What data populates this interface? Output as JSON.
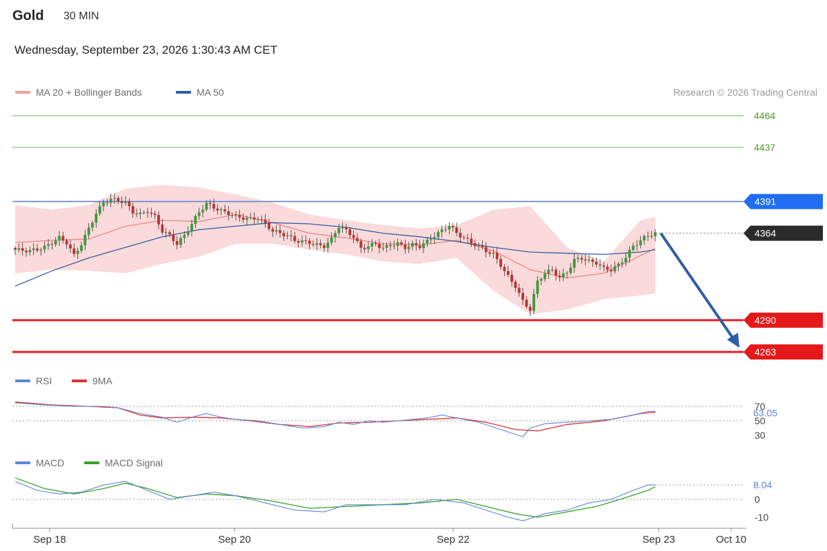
{
  "header": {
    "instrument": "Gold",
    "interval": "30 MIN",
    "datetime": "Wednesday, September 23, 2026 1:30:43 AM CET",
    "credit": "Research © 2026 Trading Central"
  },
  "legends": {
    "price": [
      {
        "label": "MA 20 + Bollinger Bands",
        "color": "#f4a0a0"
      },
      {
        "label": "MA 50",
        "color": "#2f5ea8"
      }
    ],
    "rsi": [
      {
        "label": "RSI",
        "color": "#5b86d6"
      },
      {
        "label": "9MA",
        "color": "#e03030"
      }
    ],
    "macd": [
      {
        "label": "MACD",
        "color": "#5b86d6"
      },
      {
        "label": "MACD Signal",
        "color": "#3aa02a"
      }
    ]
  },
  "colors": {
    "up": "#3a9a3a",
    "down": "#c03030",
    "band": "#f9d4d4",
    "ma20": "#f08080",
    "ma50": "#2f5ea8",
    "resistance": "#8fd08f",
    "pivot": "#5b86d6",
    "support": "#e02020",
    "arrow": "#2f5ea8"
  },
  "chart_data": [
    {
      "type": "candlestick",
      "title": "Gold 30 MIN",
      "x_ticks": [
        "Sep 18",
        "Sep 20",
        "Sep 22",
        "Sep 23",
        "Oct 10"
      ],
      "ylim": [
        4240,
        4480
      ],
      "levels": [
        {
          "label": "4464",
          "value": 4464,
          "kind": "resistance"
        },
        {
          "label": "4437",
          "value": 4437,
          "kind": "resistance"
        },
        {
          "label": "4391",
          "value": 4391,
          "kind": "pivot"
        },
        {
          "label": "4290",
          "value": 4290,
          "kind": "support"
        },
        {
          "label": "4263",
          "value": 4263,
          "kind": "support"
        }
      ],
      "last_price": {
        "label": "4364",
        "value": 4364
      },
      "forecast_target": 4263,
      "close_path": [
        [
          0,
          4350
        ],
        [
          4,
          4349
        ],
        [
          8,
          4352
        ],
        [
          12,
          4360
        ],
        [
          14,
          4356
        ],
        [
          16,
          4345
        ],
        [
          18,
          4355
        ],
        [
          20,
          4368
        ],
        [
          22,
          4381
        ],
        [
          24,
          4390
        ],
        [
          26,
          4393
        ],
        [
          28,
          4392
        ],
        [
          30,
          4390
        ],
        [
          32,
          4382
        ],
        [
          34,
          4380
        ],
        [
          36,
          4383
        ],
        [
          38,
          4378
        ],
        [
          40,
          4366
        ],
        [
          42,
          4362
        ],
        [
          44,
          4355
        ],
        [
          46,
          4362
        ],
        [
          48,
          4372
        ],
        [
          50,
          4382
        ],
        [
          52,
          4389
        ],
        [
          54,
          4386
        ],
        [
          56,
          4383
        ],
        [
          58,
          4381
        ],
        [
          60,
          4378
        ],
        [
          62,
          4377
        ],
        [
          64,
          4376
        ],
        [
          66,
          4377
        ],
        [
          68,
          4372
        ],
        [
          70,
          4366
        ],
        [
          72,
          4364
        ],
        [
          74,
          4362
        ],
        [
          76,
          4358
        ],
        [
          78,
          4357
        ],
        [
          80,
          4356
        ],
        [
          82,
          4354
        ],
        [
          84,
          4353
        ],
        [
          86,
          4359
        ],
        [
          88,
          4370
        ],
        [
          90,
          4366
        ],
        [
          92,
          4361
        ],
        [
          94,
          4351
        ],
        [
          96,
          4353
        ],
        [
          98,
          4355
        ],
        [
          100,
          4351
        ],
        [
          102,
          4354
        ],
        [
          104,
          4355
        ],
        [
          106,
          4352
        ],
        [
          108,
          4354
        ],
        [
          110,
          4353
        ],
        [
          112,
          4357
        ],
        [
          114,
          4362
        ],
        [
          116,
          4366
        ],
        [
          118,
          4371
        ],
        [
          120,
          4364
        ],
        [
          122,
          4360
        ],
        [
          124,
          4356
        ],
        [
          126,
          4353
        ],
        [
          128,
          4349
        ],
        [
          130,
          4346
        ],
        [
          132,
          4337
        ],
        [
          134,
          4327
        ],
        [
          136,
          4319
        ],
        [
          138,
          4306
        ],
        [
          140,
          4299
        ],
        [
          142,
          4323
        ],
        [
          144,
          4330
        ],
        [
          146,
          4333
        ],
        [
          148,
          4326
        ],
        [
          150,
          4331
        ],
        [
          152,
          4341
        ],
        [
          154,
          4343
        ],
        [
          156,
          4340
        ],
        [
          158,
          4339
        ],
        [
          160,
          4334
        ],
        [
          162,
          4333
        ],
        [
          164,
          4337
        ],
        [
          166,
          4344
        ],
        [
          168,
          4353
        ],
        [
          170,
          4358
        ],
        [
          172,
          4362
        ],
        [
          174,
          4364
        ]
      ],
      "ma20_path": [
        [
          0,
          4356
        ],
        [
          10,
          4358
        ],
        [
          20,
          4359
        ],
        [
          30,
          4370
        ],
        [
          40,
          4375
        ],
        [
          50,
          4374
        ],
        [
          60,
          4380
        ],
        [
          70,
          4373
        ],
        [
          80,
          4364
        ],
        [
          90,
          4360
        ],
        [
          100,
          4355
        ],
        [
          110,
          4354
        ],
        [
          120,
          4358
        ],
        [
          130,
          4349
        ],
        [
          140,
          4333
        ],
        [
          150,
          4326
        ],
        [
          160,
          4330
        ],
        [
          170,
          4345
        ],
        [
          174,
          4351
        ]
      ],
      "bollinger_upper": [
        [
          0,
          4388
        ],
        [
          10,
          4384
        ],
        [
          20,
          4388
        ],
        [
          30,
          4402
        ],
        [
          40,
          4405
        ],
        [
          50,
          4403
        ],
        [
          60,
          4397
        ],
        [
          70,
          4390
        ],
        [
          80,
          4380
        ],
        [
          90,
          4375
        ],
        [
          100,
          4371
        ],
        [
          110,
          4368
        ],
        [
          120,
          4371
        ],
        [
          130,
          4384
        ],
        [
          140,
          4387
        ],
        [
          150,
          4352
        ],
        [
          160,
          4340
        ],
        [
          170,
          4375
        ],
        [
          174,
          4378
        ]
      ],
      "bollinger_lower": [
        [
          0,
          4330
        ],
        [
          10,
          4333
        ],
        [
          20,
          4332
        ],
        [
          30,
          4330
        ],
        [
          40,
          4338
        ],
        [
          50,
          4344
        ],
        [
          60,
          4355
        ],
        [
          70,
          4355
        ],
        [
          80,
          4350
        ],
        [
          90,
          4346
        ],
        [
          100,
          4340
        ],
        [
          110,
          4338
        ],
        [
          120,
          4343
        ],
        [
          130,
          4315
        ],
        [
          140,
          4295
        ],
        [
          150,
          4299
        ],
        [
          160,
          4308
        ],
        [
          170,
          4311
        ],
        [
          174,
          4313
        ]
      ],
      "ma50_path": [
        [
          0,
          4319
        ],
        [
          10,
          4332
        ],
        [
          20,
          4343
        ],
        [
          30,
          4352
        ],
        [
          40,
          4361
        ],
        [
          50,
          4367
        ],
        [
          60,
          4370
        ],
        [
          70,
          4373
        ],
        [
          80,
          4372
        ],
        [
          90,
          4369
        ],
        [
          100,
          4364
        ],
        [
          110,
          4361
        ],
        [
          120,
          4357
        ],
        [
          130,
          4352
        ],
        [
          140,
          4348
        ],
        [
          150,
          4347
        ],
        [
          160,
          4346
        ],
        [
          170,
          4348
        ],
        [
          174,
          4350
        ]
      ]
    },
    {
      "type": "line",
      "title": "RSI",
      "levels": [
        {
          "label": "70",
          "value": 70
        },
        {
          "label": "50",
          "value": 50
        },
        {
          "label": "30",
          "value": 30
        }
      ],
      "last_value": {
        "label": "63.05",
        "value": 63.05
      },
      "ylim": [
        20,
        80
      ],
      "series": [
        {
          "name": "RSI",
          "values": [
            [
              0,
              75
            ],
            [
              8,
              72
            ],
            [
              16,
              70
            ],
            [
              24,
              70
            ],
            [
              28,
              68
            ],
            [
              34,
              60
            ],
            [
              40,
              55
            ],
            [
              44,
              48
            ],
            [
              48,
              55
            ],
            [
              52,
              60
            ],
            [
              56,
              55
            ],
            [
              60,
              52
            ],
            [
              66,
              50
            ],
            [
              72,
              45
            ],
            [
              78,
              40
            ],
            [
              84,
              42
            ],
            [
              88,
              48
            ],
            [
              92,
              45
            ],
            [
              96,
              50
            ],
            [
              100,
              48
            ],
            [
              104,
              50
            ],
            [
              108,
              52
            ],
            [
              112,
              54
            ],
            [
              116,
              58
            ],
            [
              120,
              54
            ],
            [
              126,
              48
            ],
            [
              132,
              38
            ],
            [
              138,
              28
            ],
            [
              140,
              40
            ],
            [
              144,
              46
            ],
            [
              150,
              48
            ],
            [
              156,
              50
            ],
            [
              162,
              52
            ],
            [
              168,
              58
            ],
            [
              172,
              63
            ],
            [
              174,
              63.05
            ]
          ]
        },
        {
          "name": "9MA",
          "values": [
            [
              0,
              76
            ],
            [
              10,
              72
            ],
            [
              20,
              70
            ],
            [
              28,
              68
            ],
            [
              34,
              58
            ],
            [
              40,
              54
            ],
            [
              48,
              55
            ],
            [
              56,
              54
            ],
            [
              64,
              50
            ],
            [
              72,
              45
            ],
            [
              80,
              42
            ],
            [
              88,
              47
            ],
            [
              96,
              48
            ],
            [
              104,
              50
            ],
            [
              112,
              52
            ],
            [
              120,
              54
            ],
            [
              128,
              48
            ],
            [
              136,
              38
            ],
            [
              142,
              36
            ],
            [
              150,
              45
            ],
            [
              160,
              50
            ],
            [
              170,
              60
            ],
            [
              174,
              62
            ]
          ]
        }
      ]
    },
    {
      "type": "line",
      "title": "MACD",
      "levels": [
        {
          "label": "0",
          "value": 0
        },
        {
          "label": "-10",
          "value": -10
        }
      ],
      "last_value": {
        "label": "8.04",
        "value": 8.04
      },
      "ylim": [
        -14,
        14
      ],
      "series": [
        {
          "name": "MACD",
          "values": [
            [
              0,
              10
            ],
            [
              6,
              5
            ],
            [
              12,
              3
            ],
            [
              18,
              4
            ],
            [
              24,
              8
            ],
            [
              30,
              10
            ],
            [
              36,
              5
            ],
            [
              42,
              0
            ],
            [
              48,
              2
            ],
            [
              54,
              4
            ],
            [
              60,
              2
            ],
            [
              68,
              -2
            ],
            [
              76,
              -6
            ],
            [
              84,
              -7
            ],
            [
              90,
              -3
            ],
            [
              98,
              -3
            ],
            [
              106,
              -3
            ],
            [
              114,
              0
            ],
            [
              122,
              -2
            ],
            [
              128,
              -6
            ],
            [
              134,
              -10
            ],
            [
              138,
              -12
            ],
            [
              144,
              -8
            ],
            [
              150,
              -6
            ],
            [
              156,
              -2
            ],
            [
              162,
              0
            ],
            [
              168,
              5
            ],
            [
              172,
              8
            ],
            [
              174,
              8.04
            ]
          ]
        },
        {
          "name": "MACD Signal",
          "values": [
            [
              0,
              12
            ],
            [
              8,
              6
            ],
            [
              16,
              3
            ],
            [
              24,
              6
            ],
            [
              30,
              9
            ],
            [
              36,
              6
            ],
            [
              44,
              1
            ],
            [
              52,
              3
            ],
            [
              60,
              2
            ],
            [
              70,
              -1
            ],
            [
              80,
              -5
            ],
            [
              90,
              -4
            ],
            [
              100,
              -3
            ],
            [
              110,
              -2
            ],
            [
              120,
              0
            ],
            [
              128,
              -4
            ],
            [
              136,
              -8
            ],
            [
              142,
              -10
            ],
            [
              150,
              -7
            ],
            [
              158,
              -4
            ],
            [
              166,
              1
            ],
            [
              172,
              5
            ],
            [
              174,
              7
            ]
          ]
        }
      ]
    }
  ]
}
